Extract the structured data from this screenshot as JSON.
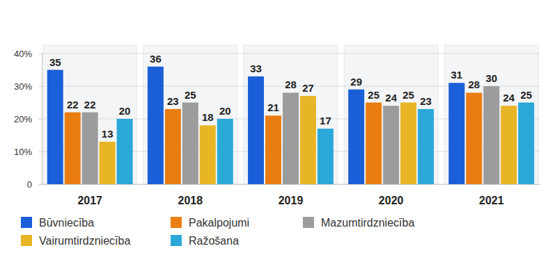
{
  "chart_data": {
    "type": "bar",
    "categories": [
      "2017",
      "2018",
      "2019",
      "2020",
      "2021"
    ],
    "series": [
      {
        "name": "Būvniecība",
        "color": "#1a5fd8",
        "values": [
          35,
          36,
          33,
          29,
          31
        ]
      },
      {
        "name": "Pakalpojumi",
        "color": "#ea7d12",
        "values": [
          22,
          23,
          21,
          25,
          28
        ]
      },
      {
        "name": "Mazumtirdzniecība",
        "color": "#9c9c9c",
        "values": [
          22,
          25,
          28,
          24,
          30
        ]
      },
      {
        "name": "Vairumtirdzniecība",
        "color": "#e8b526",
        "values": [
          13,
          18,
          27,
          25,
          24
        ]
      },
      {
        "name": "Ražošana",
        "color": "#2aa8d8",
        "values": [
          20,
          20,
          17,
          23,
          25
        ]
      }
    ],
    "ylim": [
      0,
      40
    ],
    "yticks": [
      0,
      {
        "value": 10,
        "label": "10%"
      },
      {
        "value": 20,
        "label": "20%"
      },
      {
        "value": 30,
        "label": "30%"
      },
      {
        "value": 40,
        "label": "40%"
      }
    ],
    "grid": true,
    "legend": "bottom",
    "data_labels": true
  }
}
